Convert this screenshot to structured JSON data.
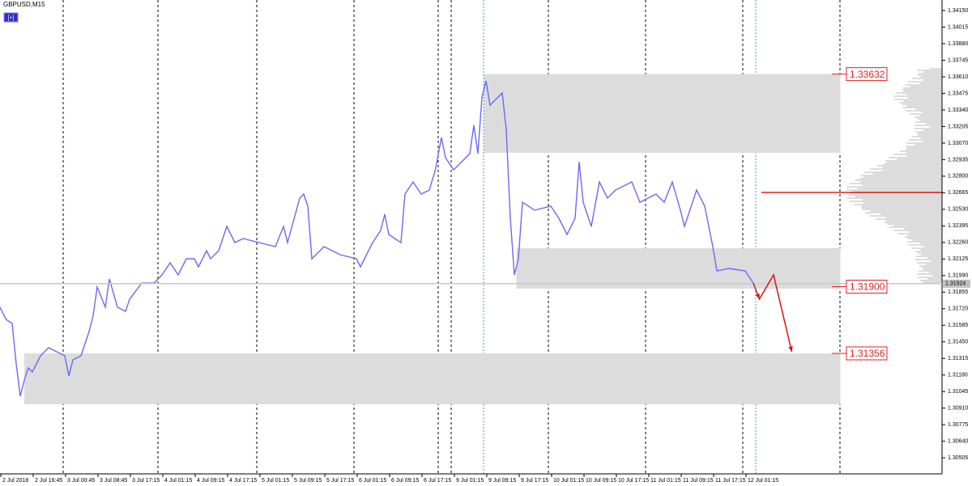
{
  "chart_data": {
    "type": "line",
    "title": "GBPUSD,M15",
    "button": "[+]",
    "xlim": [
      0,
      928
    ],
    "ylim": [
      1.30374,
      1.34236
    ],
    "xticks": [
      {
        "value": 0,
        "label": "2 Jul 2018"
      },
      {
        "value": 32,
        "label": "2 Jul 16:45"
      },
      {
        "value": 64,
        "label": "3 Jul 00:45"
      },
      {
        "value": 96,
        "label": "3 Jul 08:45"
      },
      {
        "value": 128,
        "label": "3 Jul 17:15"
      },
      {
        "value": 160,
        "label": "4 Jul 01:15"
      },
      {
        "value": 192,
        "label": "4 Jul 09:15"
      },
      {
        "value": 224,
        "label": "4 Jul 17:15"
      },
      {
        "value": 256,
        "label": "5 Jul 01:15"
      },
      {
        "value": 288,
        "label": "5 Jul 09:15"
      },
      {
        "value": 320,
        "label": "5 Jul 17:15"
      },
      {
        "value": 352,
        "label": "6 Jul 01:15"
      },
      {
        "value": 384,
        "label": "6 Jul 09:15"
      },
      {
        "value": 416,
        "label": "6 Jul 17:15"
      },
      {
        "value": 448,
        "label": "9 Jul 01:15"
      },
      {
        "value": 480,
        "label": "9 Jul 09:15"
      },
      {
        "value": 512,
        "label": "9 Jul 17:15"
      },
      {
        "value": 544,
        "label": "10 Jul 01:15"
      },
      {
        "value": 576,
        "label": "10 Jul 09:15"
      },
      {
        "value": 608,
        "label": "10 Jul 17:15"
      },
      {
        "value": 640,
        "label": "11 Jul 01:15"
      },
      {
        "value": 672,
        "label": "11 Jul 09:15"
      },
      {
        "value": 704,
        "label": "11 Jul 17:15"
      },
      {
        "value": 736,
        "label": "12 Jul 01:15"
      }
    ],
    "yticks": [
      {
        "value": 1.3415,
        "label": "1.34150"
      },
      {
        "value": 1.34015,
        "label": "1.34015"
      },
      {
        "value": 1.3388,
        "label": "1.33880"
      },
      {
        "value": 1.33745,
        "label": "1.33745"
      },
      {
        "value": 1.3361,
        "label": "1.33610"
      },
      {
        "value": 1.33475,
        "label": "1.33475"
      },
      {
        "value": 1.3334,
        "label": "1.33340"
      },
      {
        "value": 1.33205,
        "label": "1.33205"
      },
      {
        "value": 1.3307,
        "label": "1.33070"
      },
      {
        "value": 1.32935,
        "label": "1.32935"
      },
      {
        "value": 1.328,
        "label": "1.32800"
      },
      {
        "value": 1.32665,
        "label": "1.32665"
      },
      {
        "value": 1.3253,
        "label": "1.32530"
      },
      {
        "value": 1.32395,
        "label": "1.32395"
      },
      {
        "value": 1.3226,
        "label": "1.32260"
      },
      {
        "value": 1.32125,
        "label": "1.32125"
      },
      {
        "value": 1.3199,
        "label": "1.31990"
      },
      {
        "value": 1.31855,
        "label": "1.31855"
      },
      {
        "value": 1.3172,
        "label": "1.31720"
      },
      {
        "value": 1.31585,
        "label": "1.31585"
      },
      {
        "value": 1.3145,
        "label": "1.31450"
      },
      {
        "value": 1.31315,
        "label": "1.31315"
      },
      {
        "value": 1.3118,
        "label": "1.31180"
      },
      {
        "value": 1.31045,
        "label": "1.31045"
      },
      {
        "value": 1.3091,
        "label": "1.30910"
      },
      {
        "value": 1.30775,
        "label": "1.30775"
      },
      {
        "value": 1.3064,
        "label": "1.30640"
      },
      {
        "value": 1.30505,
        "label": "1.30505"
      }
    ],
    "series": [
      {
        "name": "GBPUSD",
        "color": "#7068f0",
        "x": [
          0,
          6,
          12,
          16,
          20,
          24,
          28,
          32,
          40,
          48,
          56,
          64,
          68,
          72,
          80,
          88,
          92,
          96,
          104,
          108,
          116,
          124,
          128,
          140,
          152,
          160,
          168,
          176,
          184,
          192,
          196,
          204,
          208,
          216,
          224,
          232,
          240,
          256,
          272,
          280,
          284,
          296,
          300,
          304,
          308,
          320,
          336,
          352,
          356,
          368,
          376,
          380,
          384,
          396,
          400,
          408,
          416,
          424,
          430,
          436,
          440,
          448,
          464,
          468,
          472,
          476,
          480,
          484,
          492,
          496,
          500,
          504,
          508,
          512,
          516,
          528,
          544,
          552,
          560,
          568,
          572,
          576,
          584,
          592,
          600,
          608,
          624,
          632,
          648,
          656,
          664,
          672,
          676,
          688,
          696,
          704,
          708,
          720,
          736,
          744
        ],
        "values": [
          1.31732,
          1.31633,
          1.316,
          1.3127,
          1.31007,
          1.31139,
          1.31238,
          1.31205,
          1.31336,
          1.31402,
          1.31369,
          1.31336,
          1.31172,
          1.31303,
          1.31336,
          1.31534,
          1.31666,
          1.31897,
          1.31732,
          1.31962,
          1.31732,
          1.31699,
          1.31798,
          1.31929,
          1.31929,
          1.31995,
          1.32094,
          1.31995,
          1.32127,
          1.32127,
          1.32061,
          1.32193,
          1.32127,
          1.32193,
          1.32391,
          1.32259,
          1.32292,
          1.32259,
          1.32226,
          1.32391,
          1.32259,
          1.32621,
          1.32654,
          1.32556,
          1.32127,
          1.32226,
          1.3216,
          1.32127,
          1.32061,
          1.32259,
          1.32358,
          1.3249,
          1.32325,
          1.32259,
          1.32654,
          1.32753,
          1.32654,
          1.32687,
          1.32852,
          1.33116,
          1.32951,
          1.32852,
          1.32984,
          1.33215,
          1.32984,
          1.33445,
          1.33577,
          1.33379,
          1.33445,
          1.33478,
          1.33182,
          1.32457,
          1.31995,
          1.32127,
          1.32588,
          1.32523,
          1.32556,
          1.32457,
          1.32325,
          1.32457,
          1.32918,
          1.32588,
          1.32391,
          1.32753,
          1.32621,
          1.32687,
          1.32753,
          1.32588,
          1.32654,
          1.32588,
          1.32753,
          1.32523,
          1.32391,
          1.32687,
          1.32556,
          1.32226,
          1.32028,
          1.32048,
          1.32028,
          1.31929
        ]
      }
    ],
    "zones": [
      {
        "top": 1.33632,
        "bottom": 1.32991,
        "start": 478,
        "end": 830
      },
      {
        "top": 1.32213,
        "bottom": 1.31883,
        "start": 510,
        "end": 830
      },
      {
        "top": 1.31356,
        "bottom": 1.30941,
        "start": 24,
        "end": 830
      }
    ],
    "levels": [
      {
        "value": 1.33632,
        "label": "1.33632"
      },
      {
        "value": 1.319,
        "label": "1.31900"
      },
      {
        "value": 1.31356,
        "label": "1.31356"
      }
    ],
    "current_price": 1.31924,
    "projection": {
      "color": "#e01010",
      "x": [
        744,
        750,
        764,
        782
      ],
      "values": [
        1.31929,
        1.31798,
        1.31995,
        1.31369
      ]
    }
  }
}
